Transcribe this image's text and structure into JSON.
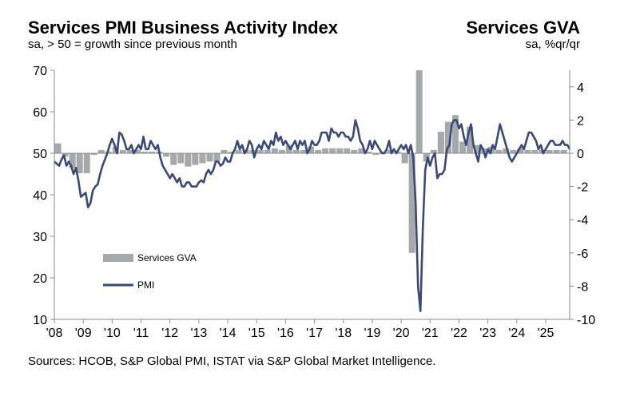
{
  "title": "Services PMI Business Activity Index",
  "subtitle": "sa, > 50 = growth since previous month",
  "right_title": "Services GVA",
  "right_subtitle": "sa, %qr/qr",
  "source": "Sources: HCOB, S&P Global PMI, ISTAT via S&P Global Market Intelligence.",
  "colors": {
    "pmi": "#3a4a78",
    "gva": "#a6a9ab",
    "axis": "#888888"
  },
  "chart_data": {
    "type": "line+bar",
    "title": "Services PMI Business Activity Index",
    "left_axis": {
      "label": "PMI",
      "ylim": [
        10,
        70
      ],
      "ticks": [
        10,
        20,
        30,
        40,
        50,
        60,
        70
      ]
    },
    "right_axis": {
      "label": "Services GVA",
      "ylim": [
        -10,
        5
      ],
      "ticks": [
        -10,
        -8,
        -6,
        -4,
        -2,
        0,
        2,
        4
      ]
    },
    "x_axis": {
      "xlim": [
        2008.0,
        2025.83
      ],
      "tick_labels": [
        "'08",
        "'09",
        "'10",
        "'11",
        "'12",
        "'13",
        "'14",
        "'15",
        "'16",
        "'17",
        "'18",
        "'19",
        "'20",
        "'21",
        "'22",
        "'23",
        "'24",
        "'25"
      ]
    },
    "legend": [
      "Services GVA",
      "PMI"
    ],
    "series": [
      {
        "name": "PMI",
        "type": "line",
        "axis": "left",
        "x_start": 2008.0,
        "step": 0.08333,
        "values": [
          48,
          47.5,
          47,
          48.5,
          49.5,
          47,
          48,
          47,
          45,
          46.5,
          43.5,
          39.5,
          40,
          40.5,
          37,
          38,
          41,
          42,
          42.5,
          45,
          47,
          48.5,
          50,
          52,
          53.5,
          52,
          50,
          55,
          54.5,
          53,
          51,
          51,
          52,
          50,
          51,
          52,
          51,
          54,
          51,
          51,
          53,
          52,
          51,
          52,
          49,
          47,
          46,
          45,
          44,
          45,
          44,
          43,
          44,
          42,
          42,
          43,
          43,
          42,
          42,
          42,
          43,
          43.5,
          43,
          45,
          46,
          45,
          46,
          48,
          48,
          47,
          47.5,
          49,
          48,
          48,
          50,
          51,
          53,
          51,
          52,
          50,
          51,
          53,
          52,
          49,
          51,
          52,
          51,
          53,
          52,
          51,
          53,
          52,
          55,
          53,
          54,
          52,
          53,
          52,
          51,
          52,
          53,
          51,
          53,
          52,
          53,
          50,
          51,
          53,
          52,
          52,
          53,
          55,
          55,
          55,
          53,
          56,
          55,
          55,
          54,
          55,
          55,
          54,
          54,
          53,
          54,
          58,
          56,
          53,
          52,
          50,
          51,
          53,
          51,
          53,
          52,
          51,
          50,
          50,
          51,
          53,
          50,
          51,
          50,
          51,
          52,
          51,
          52,
          50,
          52,
          49,
          38,
          18,
          12,
          32,
          46,
          49,
          47,
          49,
          50,
          44,
          45,
          45,
          46,
          51,
          52,
          57,
          58,
          58,
          56,
          57,
          54,
          52,
          55,
          57,
          52,
          50,
          48,
          52,
          51,
          49,
          51,
          50,
          52,
          51,
          54,
          57,
          55,
          53,
          51,
          49,
          48,
          49,
          50,
          51,
          52,
          51,
          53,
          55,
          55,
          54,
          53,
          51,
          52,
          50,
          51,
          52,
          53,
          53,
          52,
          52,
          52,
          53,
          52,
          52,
          51
        ]
      },
      {
        "name": "Services GVA",
        "type": "bar",
        "axis": "right",
        "x_start": 2008.0,
        "step": 0.25,
        "values": [
          0.6,
          -0.2,
          -0.9,
          -1.2,
          -1.2,
          -0.1,
          0.2,
          0.1,
          0.4,
          0.2,
          0.2,
          0.2,
          0.1,
          0.1,
          0.1,
          -0.2,
          -0.7,
          -0.6,
          -0.8,
          -0.7,
          -0.6,
          -0.5,
          -0.5,
          0.2,
          0.1,
          0.2,
          0.2,
          0.2,
          0.2,
          0.2,
          0.3,
          0.2,
          0.5,
          0.2,
          0.2,
          0.4,
          0.2,
          0.3,
          0.3,
          0.3,
          0.3,
          0.2,
          0.3,
          0.1,
          -0.1,
          0.1,
          0.2,
          0.1,
          -0.6,
          -6.0,
          5.4,
          -0.5,
          0.2,
          1.3,
          1.9,
          2.3,
          0.7,
          1.6,
          0.5,
          0.3,
          0.4,
          0.2,
          0.3,
          0.2,
          0.3,
          0.2,
          0.2,
          0.2,
          0.2,
          0.2,
          0.2
        ]
      }
    ]
  }
}
